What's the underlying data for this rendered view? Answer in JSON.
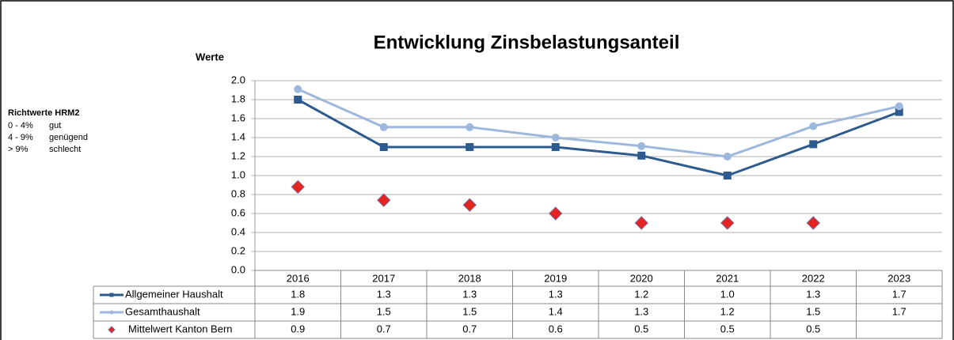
{
  "chart_data": {
    "type": "line",
    "title": "Entwicklung Zinsbelastungsanteil",
    "y_label": "Werte",
    "categories": [
      "2016",
      "2017",
      "2018",
      "2019",
      "2020",
      "2021",
      "2022",
      "2023"
    ],
    "series": [
      {
        "name": "Allgemeiner Haushalt",
        "color": "#2e5b8d",
        "marker": "square",
        "line": true,
        "values": [
          1.8,
          1.3,
          1.3,
          1.3,
          1.21,
          1.0,
          1.33,
          1.67
        ],
        "value_labels": [
          "1.8",
          "1.3",
          "1.3",
          "1.3",
          "1.2",
          "1.0",
          "1.3",
          "1.7"
        ]
      },
      {
        "name": "Gesamthaushalt",
        "color": "#9db8dc",
        "marker": "circle",
        "line": true,
        "values": [
          1.91,
          1.51,
          1.51,
          1.4,
          1.31,
          1.2,
          1.52,
          1.73
        ],
        "value_labels": [
          "1.9",
          "1.5",
          "1.5",
          "1.4",
          "1.3",
          "1.2",
          "1.5",
          "1.7"
        ]
      },
      {
        "name": "Mittelwert Kanton Bern",
        "color": "#e52420",
        "marker": "diamond",
        "line": false,
        "values": [
          0.88,
          0.74,
          0.69,
          0.6,
          0.5,
          0.5,
          0.5,
          null
        ],
        "value_labels": [
          "0.9",
          "0.7",
          "0.7",
          "0.6",
          "0.5",
          "0.5",
          "0.5",
          null
        ]
      }
    ],
    "ylim": [
      0,
      2
    ],
    "yticks": [
      {
        "value": 0,
        "label": "0.0"
      },
      {
        "value": 0.2,
        "label": "0.2"
      },
      {
        "value": 0.4,
        "label": "0.4"
      },
      {
        "value": 0.6,
        "label": "0.6"
      },
      {
        "value": 0.8,
        "label": "0.8"
      },
      {
        "value": 1,
        "label": "1.0"
      },
      {
        "value": 1.2,
        "label": "1.2"
      },
      {
        "value": 1.4,
        "label": "1.4"
      },
      {
        "value": 1.6,
        "label": "1.6"
      },
      {
        "value": 1.8,
        "label": "1.8"
      },
      {
        "value": 2,
        "label": "2.0"
      }
    ],
    "grid": true,
    "note": {
      "title": "Richtwerte HRM2",
      "rows": [
        [
          "0 - 4%",
          "gut"
        ],
        [
          "4 - 9%",
          "genügend"
        ],
        [
          "> 9%",
          "schlecht"
        ]
      ]
    }
  }
}
